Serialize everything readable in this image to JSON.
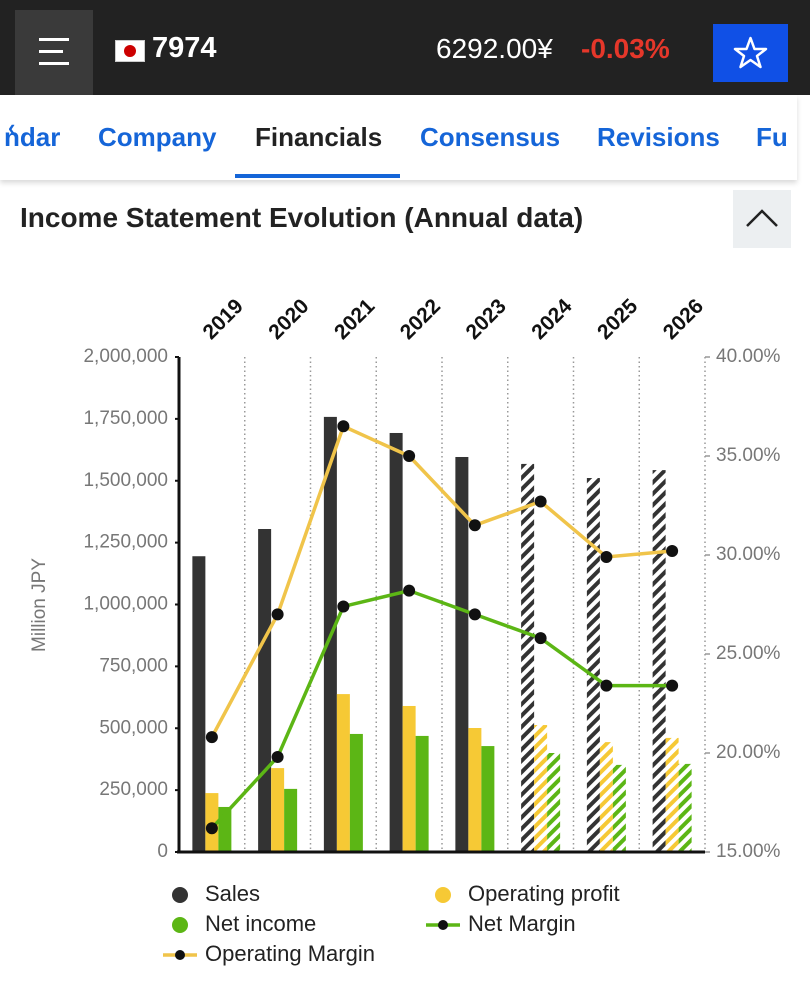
{
  "header": {
    "ticker": "7974",
    "price": "6292.00¥",
    "change": "-0.03%"
  },
  "tabs": [
    "ndar",
    "Company",
    "Financials",
    "Consensus",
    "Revisions",
    "Fu"
  ],
  "section_title": "Income Statement Evolution (Annual data)",
  "chart_data": {
    "type": "bar",
    "categories": [
      "2019",
      "2020",
      "2021",
      "2022",
      "2023",
      "2024",
      "2025",
      "2026"
    ],
    "hatched": [
      false,
      false,
      false,
      false,
      false,
      true,
      true,
      true
    ],
    "y_label": "Million JPY",
    "ylim": [
      0,
      2000000
    ],
    "yticks": [
      0,
      {
        "value": 250000,
        "label": "250,000"
      },
      {
        "value": 500000,
        "label": "500,000"
      },
      {
        "value": 750000,
        "label": "750,000"
      },
      {
        "value": 1000000,
        "label": "1,000,000"
      },
      {
        "value": 1250000,
        "label": "1,250,000"
      },
      {
        "value": 1500000,
        "label": "1,500,000"
      },
      {
        "value": 1750000,
        "label": "1,750,000"
      },
      {
        "value": 2000000,
        "label": "2,000,000"
      }
    ],
    "y2lim": [
      15,
      40
    ],
    "y2ticks": [
      {
        "value": 15,
        "label": "15.00%"
      },
      {
        "value": 20,
        "label": "20.00%"
      },
      {
        "value": 25,
        "label": "25.00%"
      },
      {
        "value": 30,
        "label": "30.00%"
      },
      {
        "value": 35,
        "label": "35.00%"
      },
      {
        "value": 40,
        "label": "40.00%"
      }
    ],
    "grid": true,
    "series": [
      {
        "name": "Sales",
        "type": "bar",
        "color": "#333333",
        "values": [
          1195000,
          1305000,
          1758000,
          1693000,
          1596000,
          1568000,
          1511000,
          1543000
        ]
      },
      {
        "name": "Operating profit",
        "type": "bar",
        "color": "#f6c935",
        "values": [
          238000,
          339000,
          638000,
          590000,
          501000,
          513000,
          444000,
          461000
        ]
      },
      {
        "name": "Net income",
        "type": "bar",
        "color": "#5cb615",
        "values": [
          182000,
          255000,
          477000,
          469000,
          428000,
          400000,
          352000,
          356000
        ]
      },
      {
        "name": "Net Margin",
        "type": "line",
        "axis": "y2",
        "color": "#5cb615",
        "values": [
          16.2,
          19.8,
          27.4,
          28.2,
          27.0,
          25.8,
          23.4,
          23.4
        ]
      },
      {
        "name": "Operating Margin",
        "type": "line",
        "axis": "y2",
        "color": "#f0c44a",
        "values": [
          20.8,
          27.0,
          36.5,
          35.0,
          31.5,
          32.7,
          29.9,
          30.2
        ]
      }
    ]
  }
}
